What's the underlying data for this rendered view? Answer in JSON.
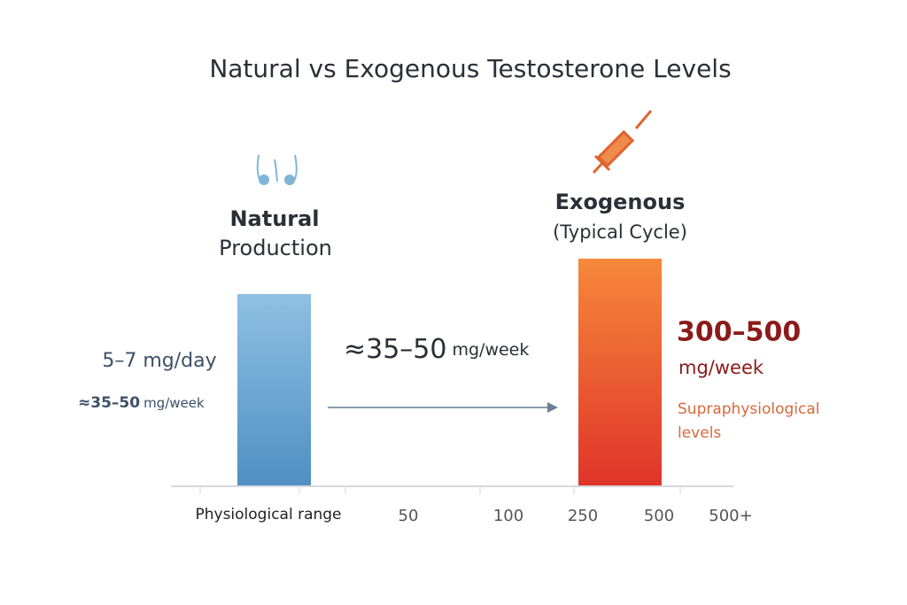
{
  "title": "Natural vs Exogenous Testosterone Levels",
  "natural": {
    "label": [
      "Natural",
      "Production"
    ],
    "daily": "5–7 mg/day",
    "weekly_amount": "≈35–50",
    "weekly_unit": "mg/week"
  },
  "middle": {
    "amount": "≈35–50",
    "unit": "mg/week"
  },
  "exogenous": {
    "label": "Exogenous",
    "sublabel": "(Typical Cycle)",
    "amount": "300–500",
    "unit": "mg/week",
    "note": [
      "Supraphysiological",
      "levels"
    ]
  },
  "axis_labels": [
    "Physiological range",
    "50",
    "100",
    "250",
    "500",
    "500+"
  ]
}
